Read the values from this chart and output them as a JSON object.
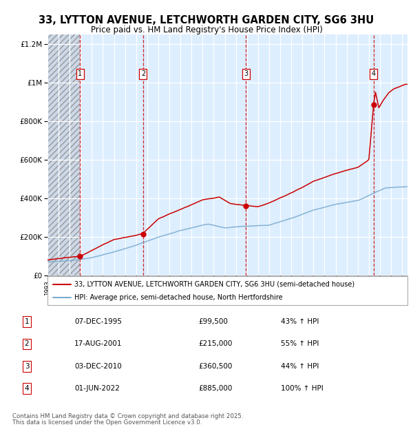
{
  "title_line1": "33, LYTTON AVENUE, LETCHWORTH GARDEN CITY, SG6 3HU",
  "title_line2": "Price paid vs. HM Land Registry's House Price Index (HPI)",
  "xlim_start": 1993.0,
  "xlim_end": 2025.5,
  "ylim": [
    0,
    1250000
  ],
  "yticks": [
    0,
    200000,
    400000,
    600000,
    800000,
    1000000,
    1200000
  ],
  "ytick_labels": [
    "£0",
    "£200K",
    "£400K",
    "£600K",
    "£800K",
    "£1M",
    "£1.2M"
  ],
  "sale_markers": [
    {
      "num": 1,
      "year": 1995.93,
      "price": 99500,
      "date": "07-DEC-1995",
      "hpi_pct": "43%"
    },
    {
      "num": 2,
      "year": 2001.63,
      "price": 215000,
      "date": "17-AUG-2001",
      "hpi_pct": "55%"
    },
    {
      "num": 3,
      "year": 2010.92,
      "price": 360500,
      "date": "03-DEC-2010",
      "hpi_pct": "44%"
    },
    {
      "num": 4,
      "year": 2022.42,
      "price": 885000,
      "date": "01-JUN-2022",
      "hpi_pct": "100%"
    }
  ],
  "legend_line1": "33, LYTTON AVENUE, LETCHWORTH GARDEN CITY, SG6 3HU (semi-detached house)",
  "legend_line2": "HPI: Average price, semi-detached house, North Hertfordshire",
  "footer_line1": "Contains HM Land Registry data © Crown copyright and database right 2025.",
  "footer_line2": "This data is licensed under the Open Government Licence v3.0.",
  "red_line_color": "#cc0000",
  "blue_line_color": "#7aadcf",
  "plot_bg": "#ddeeff",
  "hatch_bg": "#ccd8e8",
  "grid_color": "#ffffff",
  "dashed_color": "#cc0000",
  "fig_width": 6.0,
  "fig_height": 6.2,
  "dpi": 100
}
